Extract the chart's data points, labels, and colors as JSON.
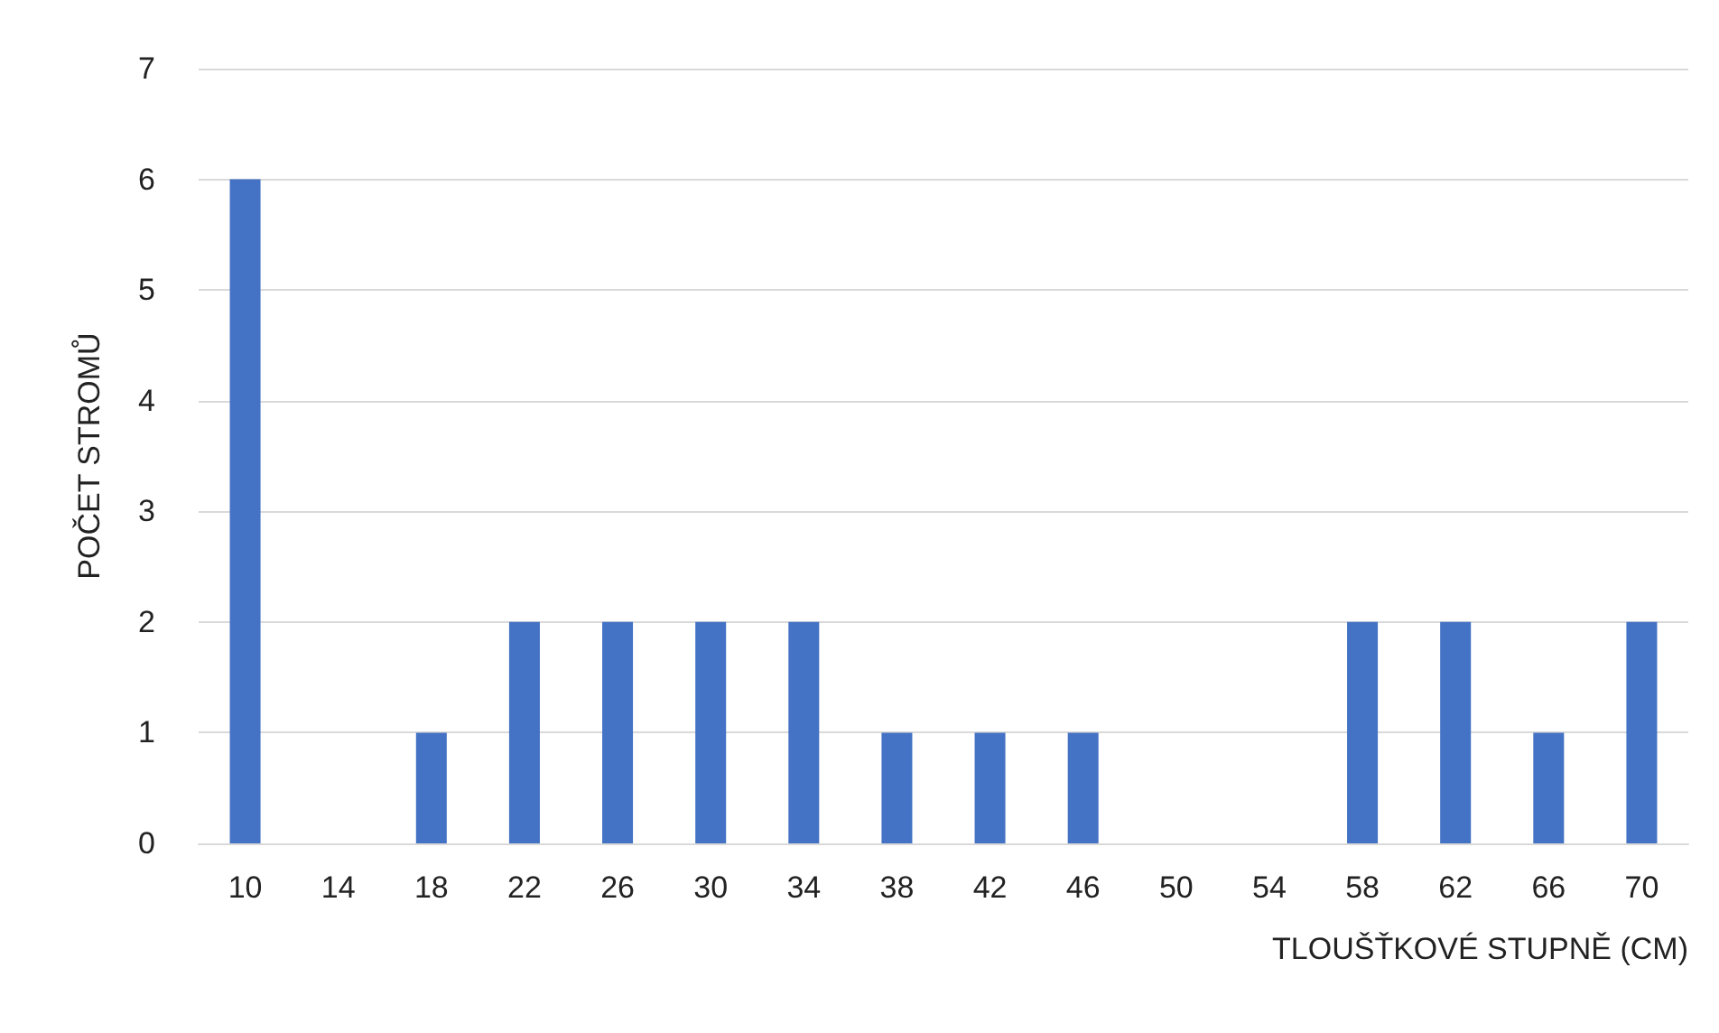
{
  "chart_data": {
    "type": "bar",
    "xlabel": "TLOUŠŤKOVÉ STUPNĚ (CM)",
    "ylabel": "POČET STROMŮ",
    "categories": [
      "10",
      "14",
      "18",
      "22",
      "26",
      "30",
      "34",
      "38",
      "42",
      "46",
      "50",
      "54",
      "58",
      "62",
      "66",
      "70"
    ],
    "values": [
      6,
      0,
      1,
      2,
      2,
      2,
      2,
      1,
      1,
      1,
      0,
      0,
      2,
      2,
      1,
      2
    ],
    "color": "#4472c4",
    "ylim": [
      0,
      7
    ],
    "yticks": [
      0,
      1,
      2,
      3,
      4,
      5,
      6,
      7
    ],
    "grid": "y"
  }
}
